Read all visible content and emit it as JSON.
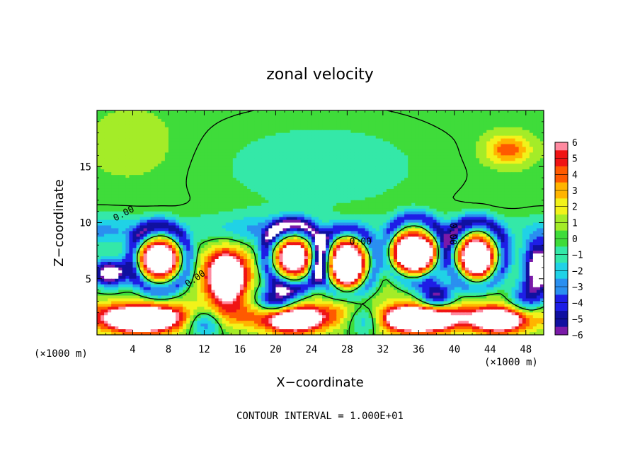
{
  "chart_data": {
    "type": "heatmap",
    "title": "zonal velocity",
    "xlabel": "X−coordinate",
    "ylabel": "Z−coordinate",
    "x_unit": "(×1000 m)",
    "y_unit": "(×1000 m)",
    "xlim": [
      0,
      50
    ],
    "ylim": [
      0,
      20
    ],
    "x_ticks": [
      4,
      8,
      12,
      16,
      20,
      24,
      28,
      32,
      36,
      40,
      44,
      48
    ],
    "x_tick_labels": [
      "4",
      "8",
      "12",
      "16",
      "20",
      "24",
      "28",
      "32",
      "36",
      "40",
      "44",
      "48"
    ],
    "y_ticks": [
      5,
      10,
      15
    ],
    "y_tick_labels": [
      "5",
      "10",
      "15"
    ],
    "colorbar": {
      "min": -6,
      "max": 6,
      "ticks": [
        6,
        5,
        4,
        3,
        2,
        1,
        0,
        -1,
        -2,
        -3,
        -4,
        -5,
        -6
      ],
      "tick_labels": [
        "6",
        "5",
        "4",
        "3",
        "2",
        "1",
        "0",
        "−1",
        "−2",
        "−3",
        "−4",
        "−5",
        "−6"
      ],
      "colors": {
        "-6": "#7a1aa8",
        "-5": "#1010a0",
        "-4": "#1e1ee6",
        "-3": "#2a8ff0",
        "-2": "#20d2e6",
        "-1": "#34e8a8",
        "0": "#3fdc3a",
        "1": "#a4ec28",
        "2": "#f2f21a",
        "3": "#ffb400",
        "4": "#ff5a00",
        "5": "#f01414",
        "6": "#ff8aa0"
      }
    },
    "contour_levels": [
      {
        "value": 0.0,
        "label": "0.00"
      }
    ],
    "features": [
      {
        "kind": "positive_core",
        "x": 7,
        "z": 6.8,
        "rx": 2.1,
        "rz": 1.7,
        "v": 8
      },
      {
        "kind": "positive_core",
        "x": 14.5,
        "z": 5.2,
        "rx": 2.4,
        "rz": 2.4,
        "v": 8
      },
      {
        "kind": "positive_core",
        "x": 22,
        "z": 7.0,
        "rx": 1.8,
        "rz": 1.6,
        "v": 8
      },
      {
        "kind": "positive_core",
        "x": 28,
        "z": 6.3,
        "rx": 2.0,
        "rz": 2.4,
        "v": 8
      },
      {
        "kind": "positive_core",
        "x": 35.5,
        "z": 7.5,
        "rx": 3.0,
        "rz": 2.3,
        "v": 8
      },
      {
        "kind": "positive_core",
        "x": 42.5,
        "z": 7.0,
        "rx": 1.9,
        "rz": 2.1,
        "v": 8
      },
      {
        "kind": "positive_core",
        "x": 5,
        "z": 1.3,
        "rx": 4.0,
        "rz": 1.2,
        "v": 7
      },
      {
        "kind": "positive_core",
        "x": 22,
        "z": 1.3,
        "rx": 3.2,
        "rz": 1.2,
        "v": 6
      },
      {
        "kind": "positive_core",
        "x": 36,
        "z": 1.3,
        "rx": 4.0,
        "rz": 1.2,
        "v": 7
      },
      {
        "kind": "positive_core",
        "x": 45,
        "z": 1.2,
        "rx": 3.0,
        "rz": 1.1,
        "v": 6
      },
      {
        "kind": "negative_core",
        "x": 20,
        "z": 3.0,
        "rx": 2.2,
        "rz": 1.3,
        "v": -5
      },
      {
        "kind": "negative_core",
        "x": 38,
        "z": 3.5,
        "rx": 2.0,
        "rz": 1.3,
        "v": -5
      },
      {
        "kind": "negative_core",
        "x": 49.5,
        "z": 6.0,
        "rx": 1.8,
        "rz": 2.5,
        "v": -6
      },
      {
        "kind": "negative_core",
        "x": 1.5,
        "z": 5.5,
        "rx": 2.0,
        "rz": 1.2,
        "v": -6
      },
      {
        "kind": "positive_maximum",
        "x": 46,
        "z": 16.5,
        "rx": 2.5,
        "rz": 1.3,
        "v": 3
      }
    ]
  },
  "footer": "CONTOUR INTERVAL = 1.000E+01"
}
